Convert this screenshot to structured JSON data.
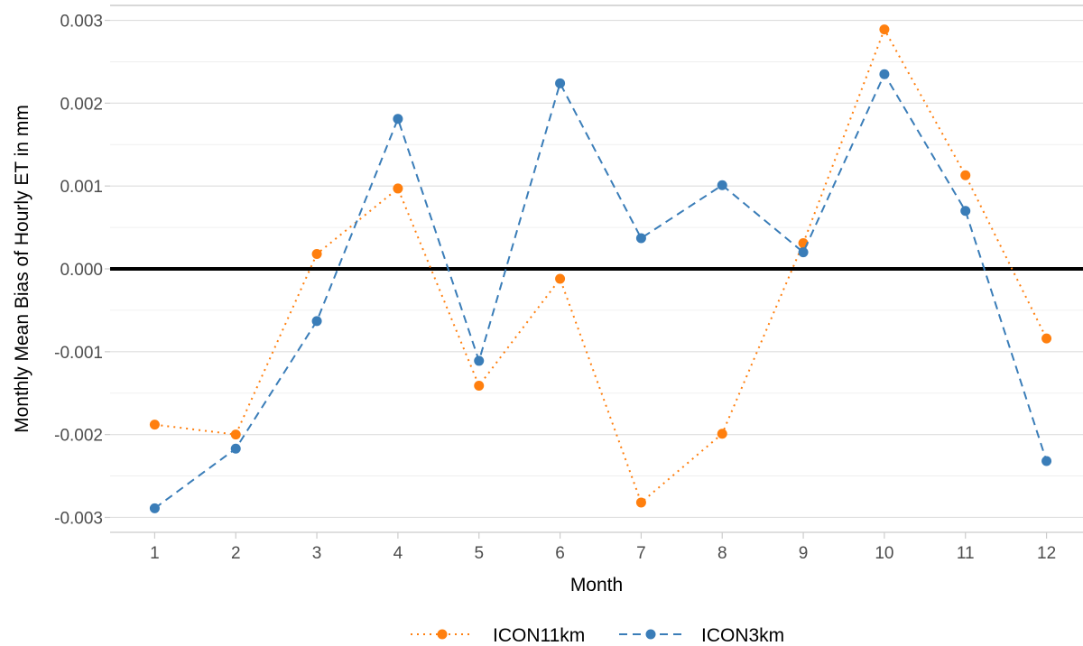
{
  "chart_data": {
    "type": "line",
    "title": "",
    "xlabel": "Month",
    "ylabel": "Monthly Mean Bias of Hourly ET in mm",
    "x": [
      1,
      2,
      3,
      4,
      5,
      6,
      7,
      8,
      9,
      10,
      11,
      12
    ],
    "x_tick_labels": [
      "1",
      "2",
      "3",
      "4",
      "5",
      "6",
      "7",
      "8",
      "9",
      "10",
      "11",
      "12"
    ],
    "xlim": [
      0.45,
      12.45
    ],
    "ylim": [
      -0.00318,
      0.00318
    ],
    "y_ticks": [
      -0.003,
      -0.002,
      -0.001,
      0.0,
      0.001,
      0.002,
      0.003
    ],
    "y_tick_labels": [
      "-0.003",
      "-0.002",
      "-0.001",
      "0.000",
      "0.001",
      "0.002",
      "0.003"
    ],
    "reference_line": 0,
    "grid": true,
    "legend_position": "bottom",
    "series": [
      {
        "name": "ICON11km",
        "color": "#FF7F0E",
        "line_style": "dotted",
        "values": [
          -0.00188,
          -0.002,
          0.00018,
          0.00097,
          -0.00141,
          -0.00012,
          -0.00282,
          -0.00199,
          0.00031,
          0.00289,
          0.00113,
          -0.00084
        ]
      },
      {
        "name": "ICON3km",
        "color": "#3A7DB8",
        "line_style": "dashed",
        "values": [
          -0.00289,
          -0.00217,
          -0.00063,
          0.00181,
          -0.00111,
          0.00224,
          0.00037,
          0.00101,
          0.0002,
          0.00235,
          0.0007,
          -0.00232
        ]
      }
    ]
  }
}
